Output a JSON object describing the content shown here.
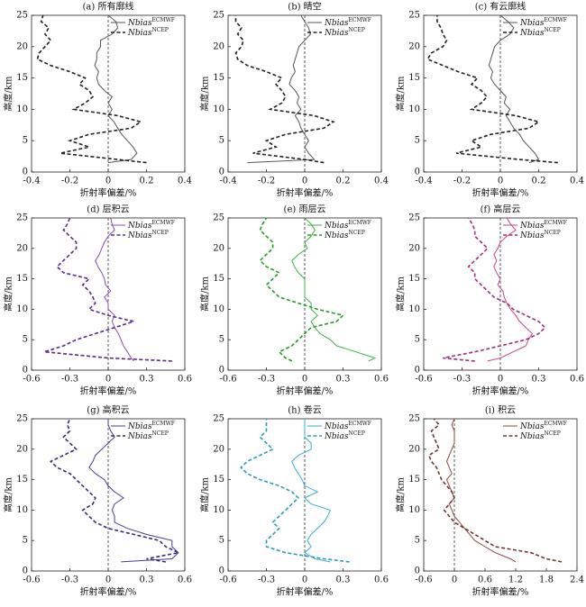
{
  "chart_data": [
    {
      "type": "line",
      "title": "(a) 所有廓线",
      "x_label": "折射率偏差/%",
      "y_label": "高度/km",
      "y": [
        1.5,
        2,
        3,
        4,
        5,
        6,
        7,
        8,
        9,
        10,
        11,
        12,
        13,
        14,
        15,
        16,
        17,
        18,
        19,
        20,
        21,
        22,
        23,
        24,
        25
      ],
      "series": [
        {
          "name": "Nbias",
          "name_superscript": "ECMWF",
          "color": "#555555",
          "dash": false,
          "values": [
            0.0,
            0.12,
            0.15,
            0.13,
            0.1,
            0.07,
            0.05,
            0.03,
            0.0,
            0.02,
            0.0,
            0.02,
            -0.02,
            -0.05,
            -0.06,
            -0.05,
            -0.07,
            -0.06,
            -0.06,
            -0.04,
            -0.04,
            0.02,
            0.05,
            0.04,
            0.0
          ]
        },
        {
          "name": "Nbias",
          "name_superscript": "NCEP",
          "color": "#222222",
          "dash": true,
          "values": [
            0.2,
            0.05,
            -0.25,
            -0.1,
            -0.2,
            -0.1,
            0.12,
            0.17,
            0.05,
            -0.18,
            -0.12,
            -0.08,
            -0.1,
            -0.15,
            -0.12,
            -0.2,
            -0.3,
            -0.37,
            -0.36,
            -0.33,
            -0.3,
            -0.33,
            -0.31,
            -0.35,
            -0.34
          ]
        }
      ],
      "xlim": [
        -0.4,
        0.4
      ],
      "xticks": [
        -0.4,
        -0.2,
        0,
        0.2,
        0.4
      ],
      "ylim": [
        0,
        25
      ],
      "yticks": [
        0,
        5,
        10,
        15,
        20,
        25
      ],
      "reference_line": 0
    },
    {
      "type": "line",
      "title": "(b) 晴空",
      "x_label": "折射率偏差/%",
      "y_label": "高度/km",
      "y": [
        1.5,
        2,
        3,
        4,
        5,
        6,
        7,
        8,
        9,
        10,
        11,
        12,
        13,
        14,
        15,
        16,
        17,
        18,
        19,
        20,
        21,
        22,
        23,
        24,
        25
      ],
      "series": [
        {
          "name": "Nbias",
          "name_superscript": "ECMWF",
          "color": "#555555",
          "dash": false,
          "values": [
            -0.3,
            0.05,
            0.02,
            0.0,
            0.02,
            0.0,
            -0.02,
            -0.03,
            -0.05,
            -0.02,
            -0.04,
            -0.03,
            -0.05,
            -0.08,
            -0.07,
            -0.05,
            -0.06,
            -0.05,
            -0.04,
            -0.03,
            0.0,
            0.03,
            0.02,
            0.0,
            -0.02
          ]
        },
        {
          "name": "Nbias",
          "name_superscript": "NCEP",
          "color": "#222222",
          "dash": true,
          "values": [
            0.1,
            0.0,
            -0.27,
            -0.15,
            -0.2,
            -0.1,
            0.1,
            0.15,
            0.05,
            -0.18,
            -0.12,
            -0.1,
            -0.12,
            -0.15,
            -0.12,
            -0.2,
            -0.3,
            -0.35,
            -0.36,
            -0.33,
            -0.32,
            -0.35,
            -0.33,
            -0.36,
            -0.36
          ]
        }
      ],
      "xlim": [
        -0.4,
        0.4
      ],
      "xticks": [
        -0.4,
        -0.2,
        0,
        0.2,
        0.4
      ],
      "ylim": [
        0,
        25
      ],
      "yticks": [
        0,
        5,
        10,
        15,
        20,
        25
      ],
      "reference_line": 0
    },
    {
      "type": "line",
      "title": "(c) 有云廓线",
      "x_label": "折射率偏差/%",
      "y_label": "高度/km",
      "y": [
        1.5,
        2,
        3,
        4,
        5,
        6,
        7,
        8,
        9,
        10,
        11,
        12,
        13,
        14,
        15,
        16,
        17,
        18,
        19,
        20,
        21,
        22,
        23,
        24,
        25
      ],
      "series": [
        {
          "name": "Nbias",
          "name_superscript": "ECMWF",
          "color": "#555555",
          "dash": false,
          "values": [
            0.15,
            0.2,
            0.18,
            0.15,
            0.12,
            0.1,
            0.07,
            0.05,
            0.03,
            0.05,
            0.02,
            0.03,
            0.0,
            -0.03,
            -0.05,
            -0.04,
            -0.06,
            -0.05,
            -0.04,
            -0.03,
            0.0,
            0.05,
            0.07,
            0.04,
            0.0
          ]
        },
        {
          "name": "Nbias",
          "name_superscript": "NCEP",
          "color": "#222222",
          "dash": true,
          "values": [
            0.3,
            0.1,
            -0.23,
            -0.1,
            -0.15,
            -0.05,
            0.15,
            0.2,
            0.08,
            -0.15,
            -0.1,
            -0.07,
            -0.1,
            -0.15,
            -0.12,
            -0.22,
            -0.3,
            -0.38,
            -0.36,
            -0.3,
            -0.28,
            -0.3,
            -0.31,
            -0.33,
            -0.33
          ]
        }
      ],
      "xlim": [
        -0.4,
        0.4
      ],
      "xticks": [
        -0.4,
        -0.2,
        0,
        0.2,
        0.4
      ],
      "ylim": [
        0,
        25
      ],
      "yticks": [
        0,
        5,
        10,
        15,
        20,
        25
      ],
      "reference_line": 0
    },
    {
      "type": "line",
      "title": "(d) 层积云",
      "x_label": "折射率偏差/%",
      "y_label": "高度/km",
      "y": [
        1.5,
        2,
        3,
        4,
        5,
        6,
        7,
        8,
        9,
        10,
        11,
        12,
        13,
        14,
        15,
        16,
        17,
        18,
        19,
        20,
        21,
        22,
        23,
        24,
        25
      ],
      "series": [
        {
          "name": "Nbias",
          "name_superscript": "ECMWF",
          "color": "#8a4cc0",
          "dash": false,
          "values": [
            0.2,
            0.18,
            0.15,
            0.12,
            0.1,
            0.08,
            0.05,
            0.03,
            0.05,
            0.0,
            0.0,
            -0.03,
            0.02,
            -0.02,
            -0.03,
            -0.05,
            -0.08,
            -0.1,
            -0.07,
            -0.05,
            -0.03,
            0.0,
            0.05,
            0.03,
            0.02
          ]
        },
        {
          "name": "Nbias",
          "name_superscript": "NCEP",
          "color": "#5a2a8a",
          "dash": true,
          "values": [
            0.5,
            0.0,
            -0.5,
            -0.35,
            -0.25,
            -0.1,
            0.05,
            0.2,
            0.0,
            -0.15,
            -0.1,
            -0.12,
            -0.15,
            -0.2,
            -0.15,
            -0.35,
            -0.4,
            -0.35,
            -0.3,
            -0.25,
            -0.25,
            -0.3,
            -0.35,
            -0.32,
            -0.3
          ]
        }
      ],
      "xlim": [
        -0.6,
        0.6
      ],
      "xticks": [
        -0.6,
        -0.3,
        0,
        0.3,
        0.6
      ],
      "ylim": [
        0,
        25
      ],
      "yticks": [
        0,
        5,
        10,
        15,
        20,
        25
      ],
      "reference_line": 0
    },
    {
      "type": "line",
      "title": "(e) 雨层云",
      "x_label": "折射率偏差/%",
      "y_label": "高度/km",
      "y": [
        1.5,
        2,
        3,
        4,
        5,
        6,
        7,
        8,
        9,
        10,
        11,
        12,
        13,
        14,
        15,
        16,
        17,
        18,
        19,
        20,
        21,
        22,
        23,
        24,
        25
      ],
      "series": [
        {
          "name": "Nbias",
          "name_superscript": "ECMWF",
          "color": "#3cb043",
          "dash": false,
          "values": [
            0.5,
            0.55,
            0.4,
            0.25,
            0.2,
            0.12,
            0.08,
            0.05,
            0.1,
            0.05,
            0.05,
            0.0,
            0.0,
            0.0,
            0.0,
            -0.05,
            -0.08,
            -0.1,
            -0.05,
            0.02,
            0.0,
            0.05,
            0.08,
            0.05,
            0.0
          ]
        },
        {
          "name": "Nbias",
          "name_superscript": "NCEP",
          "color": "#2a9a2a",
          "dash": true,
          "values": [
            -0.1,
            -0.15,
            -0.2,
            -0.1,
            -0.05,
            0.0,
            0.05,
            0.25,
            0.3,
            0.1,
            -0.05,
            -0.2,
            -0.25,
            -0.3,
            -0.25,
            -0.2,
            -0.3,
            -0.35,
            -0.3,
            -0.25,
            -0.25,
            -0.3,
            -0.35,
            -0.33,
            -0.3
          ]
        }
      ],
      "xlim": [
        -0.6,
        0.6
      ],
      "xticks": [
        -0.6,
        -0.3,
        0,
        0.3,
        0.6
      ],
      "ylim": [
        0,
        25
      ],
      "yticks": [
        0,
        5,
        10,
        15,
        20,
        25
      ],
      "reference_line": 0
    },
    {
      "type": "line",
      "title": "(f) 高层云",
      "x_label": "折射率偏差/%",
      "y_label": "高度/km",
      "y": [
        1.5,
        2,
        3,
        4,
        5,
        6,
        7,
        8,
        9,
        10,
        11,
        12,
        13,
        14,
        15,
        16,
        17,
        18,
        19,
        20,
        21,
        22,
        23,
        24,
        25
      ],
      "series": [
        {
          "name": "Nbias",
          "name_superscript": "ECMWF",
          "color": "#cc4488",
          "dash": false,
          "values": [
            -0.1,
            0.0,
            0.1,
            0.2,
            0.22,
            0.25,
            0.2,
            0.15,
            0.12,
            0.08,
            0.05,
            0.03,
            0.02,
            -0.02,
            0.0,
            -0.03,
            -0.05,
            -0.03,
            -0.05,
            -0.02,
            0.0,
            0.05,
            0.12,
            0.08,
            0.05
          ]
        },
        {
          "name": "Nbias",
          "name_superscript": "NCEP",
          "color": "#a0307a",
          "dash": true,
          "values": [
            -0.2,
            -0.45,
            -0.2,
            0.0,
            0.2,
            0.3,
            0.35,
            0.3,
            0.2,
            0.1,
            0.05,
            -0.05,
            -0.1,
            -0.15,
            -0.2,
            -0.2,
            -0.25,
            -0.2,
            -0.15,
            -0.1,
            -0.15,
            -0.2,
            -0.2,
            -0.22,
            -0.25
          ]
        }
      ],
      "xlim": [
        -0.6,
        0.6
      ],
      "xticks": [
        -0.6,
        -0.3,
        0,
        0.3,
        0.6
      ],
      "ylim": [
        0,
        25
      ],
      "yticks": [
        0,
        5,
        10,
        15,
        20,
        25
      ],
      "reference_line": 0
    },
    {
      "type": "line",
      "title": "(g) 高积云",
      "x_label": "折射率偏差/%",
      "y_label": "高度/km",
      "y": [
        1.5,
        2,
        3,
        4,
        5,
        6,
        7,
        8,
        9,
        10,
        11,
        12,
        13,
        14,
        15,
        16,
        17,
        18,
        19,
        20,
        21,
        22,
        23,
        24,
        25
      ],
      "series": [
        {
          "name": "Nbias",
          "name_superscript": "ECMWF",
          "color": "#4a3a9a",
          "dash": false,
          "values": [
            0.1,
            0.5,
            0.55,
            0.5,
            0.5,
            0.3,
            0.15,
            0.05,
            0.05,
            0.03,
            0.05,
            0.12,
            0.05,
            0.0,
            -0.03,
            -0.1,
            -0.15,
            -0.12,
            -0.1,
            -0.05,
            0.0,
            0.05,
            0.02,
            0.0,
            0.0
          ]
        },
        {
          "name": "Nbias",
          "name_superscript": "NCEP",
          "color": "#3a2a80",
          "dash": true,
          "values": [
            0.45,
            0.3,
            0.55,
            0.45,
            0.4,
            0.2,
            0.0,
            -0.1,
            -0.15,
            -0.2,
            -0.12,
            -0.1,
            -0.15,
            -0.2,
            -0.25,
            -0.3,
            -0.4,
            -0.45,
            -0.35,
            -0.25,
            -0.3,
            -0.35,
            -0.3,
            -0.32,
            -0.3
          ]
        }
      ],
      "xlim": [
        -0.6,
        0.6
      ],
      "xticks": [
        -0.6,
        -0.3,
        0,
        0.3,
        0.6
      ],
      "ylim": [
        0,
        25
      ],
      "yticks": [
        0,
        5,
        10,
        15,
        20,
        25
      ],
      "reference_line": 0
    },
    {
      "type": "line",
      "title": "(h) 卷云",
      "x_label": "折射率偏差/%",
      "y_label": "高度/km",
      "y": [
        1.5,
        2,
        3,
        4,
        5,
        6,
        7,
        8,
        9,
        10,
        11,
        12,
        13,
        14,
        15,
        16,
        17,
        18,
        19,
        20,
        21,
        22,
        23,
        24,
        25
      ],
      "series": [
        {
          "name": "Nbias",
          "name_superscript": "ECMWF",
          "color": "#3ab0d0",
          "dash": false,
          "values": [
            0.2,
            0.08,
            0.0,
            0.05,
            0.02,
            0.05,
            0.1,
            0.15,
            0.18,
            0.2,
            0.05,
            0.0,
            0.1,
            0.0,
            -0.02,
            -0.05,
            -0.08,
            -0.1,
            -0.05,
            0.05,
            0.05,
            0.0,
            0.0,
            0.0,
            0.0
          ]
        },
        {
          "name": "Nbias",
          "name_superscript": "NCEP",
          "color": "#2a9ac0",
          "dash": true,
          "values": [
            0.35,
            0.15,
            -0.15,
            -0.3,
            -0.3,
            -0.25,
            -0.2,
            -0.25,
            -0.2,
            -0.15,
            -0.1,
            -0.05,
            -0.1,
            -0.2,
            -0.35,
            -0.45,
            -0.5,
            -0.45,
            -0.35,
            -0.25,
            -0.3,
            -0.35,
            -0.3,
            -0.3,
            -0.3
          ]
        }
      ],
      "xlim": [
        -0.6,
        0.6
      ],
      "xticks": [
        -0.6,
        -0.3,
        0,
        0.3,
        0.6
      ],
      "ylim": [
        0,
        25
      ],
      "yticks": [
        0,
        5,
        10,
        15,
        20,
        25
      ],
      "reference_line": 0
    },
    {
      "type": "line",
      "title": "(i) 积云",
      "x_label": "折射率偏差/%",
      "y_label": "高度/km",
      "y": [
        1.5,
        2,
        3,
        4,
        5,
        6,
        7,
        8,
        9,
        10,
        11,
        12,
        13,
        14,
        15,
        16,
        17,
        18,
        19,
        20,
        21,
        22,
        23,
        24,
        25
      ],
      "series": [
        {
          "name": "Nbias",
          "name_superscript": "ECMWF",
          "color": "#8b4a3a",
          "dash": false,
          "values": [
            1.2,
            1.1,
            0.8,
            0.6,
            0.4,
            0.3,
            0.2,
            0.1,
            0.0,
            -0.05,
            -0.1,
            0.0,
            -0.05,
            -0.1,
            -0.15,
            -0.05,
            -0.1,
            -0.15,
            -0.1,
            -0.05,
            0.0,
            0.0,
            0.0,
            -0.05,
            0.0
          ]
        },
        {
          "name": "Nbias",
          "name_superscript": "NCEP",
          "color": "#6a3a30",
          "dash": true,
          "values": [
            2.1,
            1.8,
            1.5,
            0.8,
            0.6,
            0.4,
            0.2,
            0.0,
            -0.1,
            -0.2,
            -0.1,
            0.0,
            -0.05,
            -0.15,
            -0.25,
            -0.3,
            -0.35,
            -0.45,
            -0.5,
            -0.3,
            -0.35,
            -0.4,
            -0.45,
            -0.3,
            -0.4
          ]
        }
      ],
      "xlim": [
        -0.6,
        2.4
      ],
      "xticks": [
        -0.6,
        0,
        0.6,
        1.2,
        1.8,
        2.4
      ],
      "ylim": [
        0,
        25
      ],
      "yticks": [
        0,
        5,
        10,
        15,
        20,
        25
      ],
      "reference_line": 0
    }
  ]
}
